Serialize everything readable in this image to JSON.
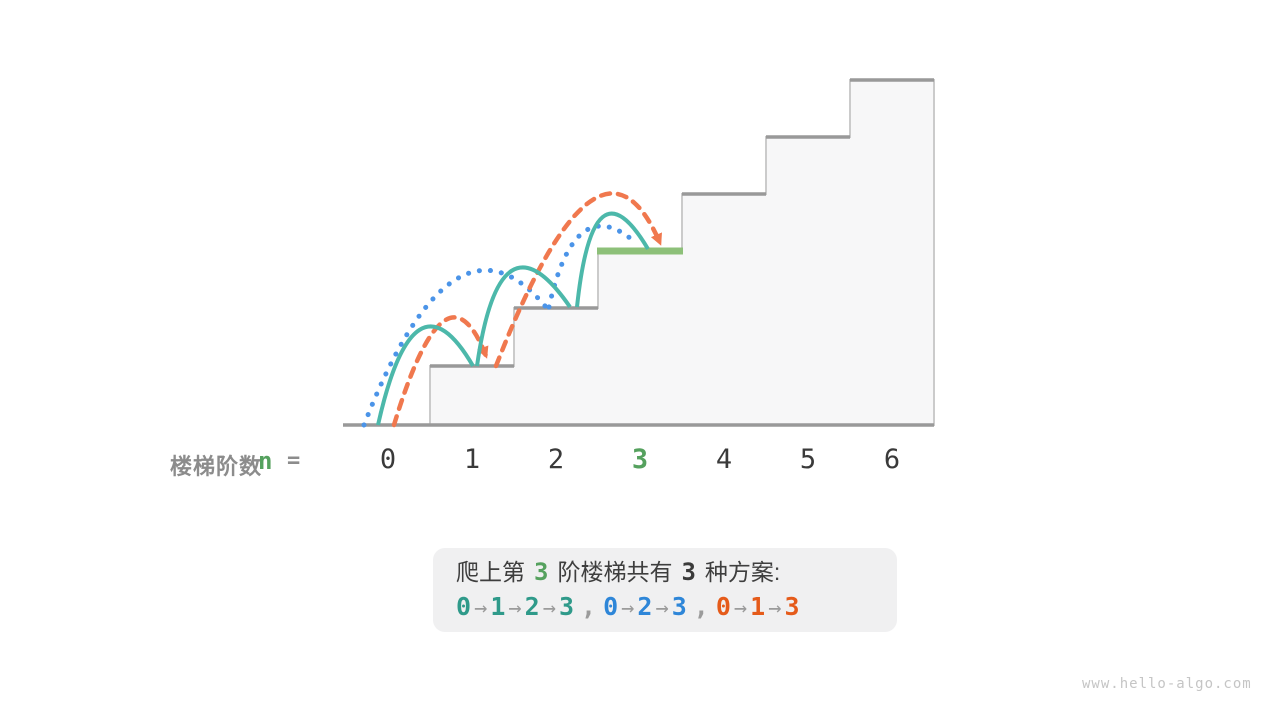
{
  "diagram": {
    "title_none": "",
    "total_steps": "6",
    "highlighted_step": "3",
    "jumps": [
      {
        "route_color_name": "teal",
        "style": "solid",
        "hops": [
          "0-1",
          "1-2",
          "2-3"
        ]
      },
      {
        "route_color_name": "blue",
        "style": "dotted",
        "hops": [
          "0-2",
          "2-3"
        ]
      },
      {
        "route_color_name": "orange",
        "style": "dashed",
        "hops": [
          "0-1",
          "1-3"
        ]
      }
    ]
  },
  "axis": {
    "label": "楼梯阶数",
    "var": "n",
    "equals": "=",
    "values": [
      "0",
      "1",
      "2",
      "3",
      "4",
      "5",
      "6"
    ],
    "highlight_index": 3
  },
  "caption": {
    "prefix": "爬上第",
    "step_number": "3",
    "middle": "阶楼梯共有",
    "count": "3",
    "suffix": "种方案:",
    "arrow": "→",
    "separator": ",",
    "sequences": [
      {
        "steps": [
          "0",
          "1",
          "2",
          "3"
        ],
        "color": "#2f9a8a"
      },
      {
        "steps": [
          "0",
          "2",
          "3"
        ],
        "color": "#2e86d8"
      },
      {
        "steps": [
          "0",
          "1",
          "3"
        ],
        "color": "#e55b1a"
      }
    ]
  },
  "watermark": "www.hello-algo.com",
  "colors": {
    "teal_arc": "#4cb8aa",
    "blue_arc": "#4b94e8",
    "orange_arc": "#f0784e",
    "highlight_green": "#8dc079",
    "green_text": "#55a15e",
    "stair_fill": "#f7f7f8",
    "tread_gray": "#999999",
    "riser_gray": "#cbcbcb",
    "digit_dark": "#3a3a3a",
    "label_gray": "#8c8c8c",
    "box_bg": "#f0f0f1",
    "watermark_gray": "#c5c5c5"
  }
}
